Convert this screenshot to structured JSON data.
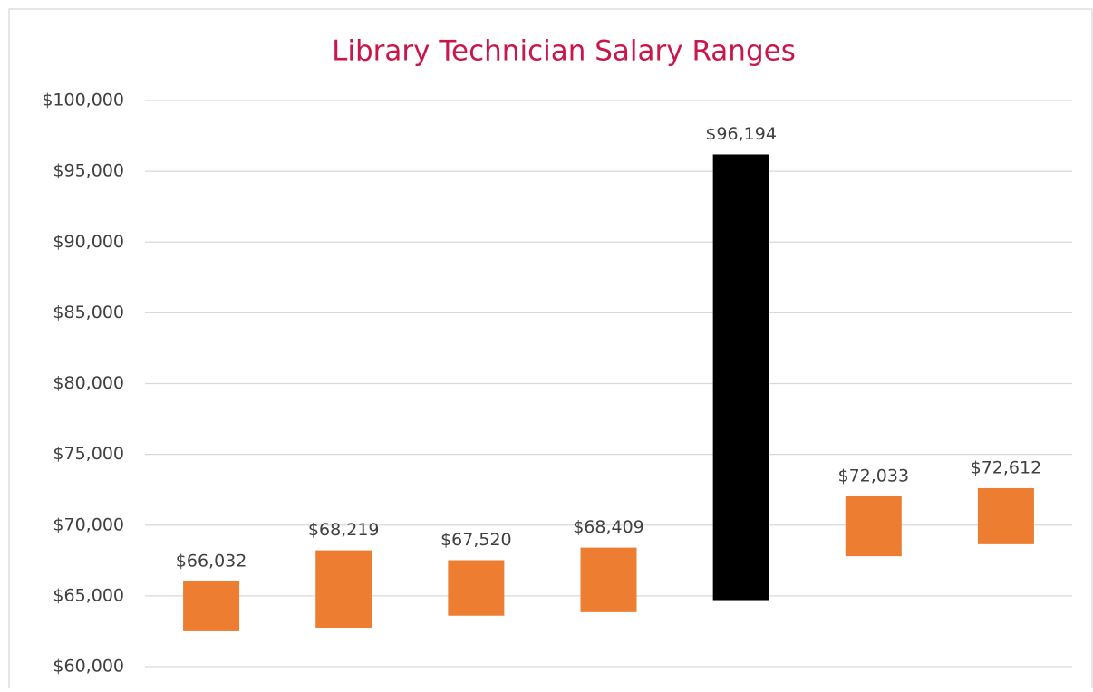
{
  "chart_data": {
    "type": "range_bar",
    "title": "Library Technician Salary Ranges",
    "lows": [
      62500,
      62750,
      63600,
      63850,
      64700,
      67800,
      68650
    ],
    "values": [
      66032,
      68219,
      67520,
      68409,
      96194,
      72033,
      72612
    ],
    "value_labels": [
      "$66,032",
      "$68,219",
      "$67,520",
      "$68,409",
      "$96,194",
      "$72,033",
      "$72,612"
    ],
    "colors": [
      "#ED7D31",
      "#ED7D31",
      "#ED7D31",
      "#ED7D31",
      "#000000",
      "#ED7D31",
      "#ED7D31"
    ],
    "ylim": [
      60000,
      100000
    ],
    "yticks": [
      {
        "value": 60000,
        "label": "$60,000"
      },
      {
        "value": 65000,
        "label": "$65,000"
      },
      {
        "value": 70000,
        "label": "$70,000"
      },
      {
        "value": 75000,
        "label": "$75,000"
      },
      {
        "value": 80000,
        "label": "$80,000"
      },
      {
        "value": 85000,
        "label": "$85,000"
      },
      {
        "value": 90000,
        "label": "$90,000"
      },
      {
        "value": 95000,
        "label": "$95,000"
      },
      {
        "value": 100000,
        "label": "$100,000"
      }
    ],
    "grid": true
  }
}
